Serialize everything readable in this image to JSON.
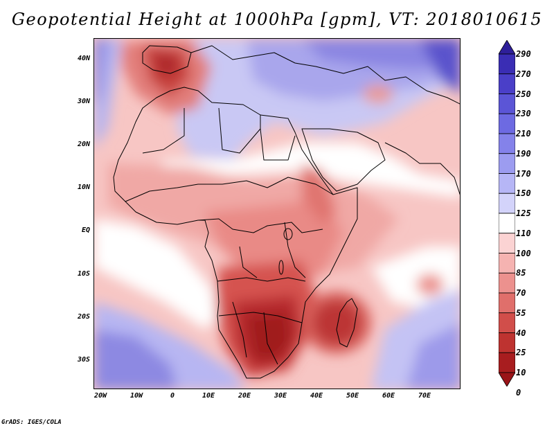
{
  "title": "Geopotential Height at 1000hPa [gpm], VT: 2018010615",
  "footer": "GrADS: IGES/COLA",
  "map": {
    "variable": "Geopotential Height",
    "level": "1000hPa",
    "units": "gpm",
    "valid_time": "2018010615",
    "lat_labels": [
      "40N",
      "30N",
      "20N",
      "10N",
      "EQ",
      "10S",
      "20S",
      "30S"
    ],
    "lon_labels": [
      "20W",
      "10W",
      "0",
      "10E",
      "20E",
      "30E",
      "40E",
      "50E",
      "60E",
      "70E"
    ]
  },
  "colorbar": {
    "labels": [
      "290",
      "270",
      "250",
      "230",
      "210",
      "190",
      "170",
      "150",
      "125",
      "110",
      "100",
      "85",
      "70",
      "55",
      "40",
      "25",
      "10",
      "0"
    ],
    "colors": [
      "#2e1f9a",
      "#3a2db4",
      "#4a3fc8",
      "#5b55d6",
      "#6d6ae2",
      "#8482ea",
      "#9c9cf0",
      "#b6b6f6",
      "#d3d3fa",
      "#ffffff",
      "#fbd3d3",
      "#f5b3b1",
      "#ec918e",
      "#e06f6b",
      "#d14e4a",
      "#be3330",
      "#a81d1f",
      "#9a1418"
    ]
  }
}
